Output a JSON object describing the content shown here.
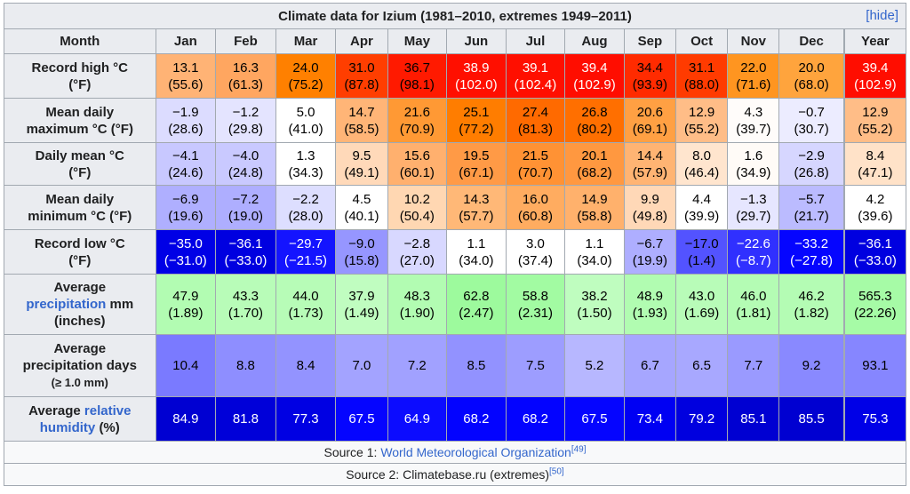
{
  "caption": {
    "title": "Climate data for Izium (1981–2010, extremes 1949–2011)",
    "hide": "[hide]"
  },
  "header": {
    "month": "Month",
    "months": [
      "Jan",
      "Feb",
      "Mar",
      "Apr",
      "May",
      "Jun",
      "Jul",
      "Aug",
      "Sep",
      "Oct",
      "Nov",
      "Dec"
    ],
    "year": "Year"
  },
  "rows": [
    {
      "label": [
        "Record high °C",
        "(°F)"
      ],
      "c": [
        "13.1",
        "16.3",
        "24.0",
        "31.0",
        "36.7",
        "38.9",
        "39.1",
        "39.4",
        "34.4",
        "31.1",
        "22.0",
        "20.0",
        "39.4"
      ],
      "f": [
        "(55.6)",
        "(61.3)",
        "(75.2)",
        "(87.8)",
        "(98.1)",
        "(102.0)",
        "(102.4)",
        "(102.9)",
        "(93.9)",
        "(88.0)",
        "(71.6)",
        "(68.0)",
        "(102.9)"
      ],
      "bg": [
        "#ffb375",
        "#ffa660",
        "#ff8000",
        "#ff3e00",
        "#ff1a00",
        "#ff0f00",
        "#ff0f00",
        "#ff0d00",
        "#ff2b00",
        "#ff3b00",
        "#ff9520",
        "#ffa43d",
        "#ff0d00"
      ],
      "fg": [
        "#000000",
        "#000000",
        "#000000",
        "#000000",
        "#000000",
        "#ffffff",
        "#ffffff",
        "#ffffff",
        "#000000",
        "#000000",
        "#000000",
        "#000000",
        "#ffffff"
      ]
    },
    {
      "label": [
        "Mean daily",
        "maximum °C (°F)"
      ],
      "c": [
        "−1.9",
        "−1.2",
        "5.0",
        "14.7",
        "21.6",
        "25.1",
        "27.4",
        "26.8",
        "20.6",
        "12.9",
        "4.3",
        "−0.7",
        "12.9"
      ],
      "f": [
        "(28.6)",
        "(29.8)",
        "(41.0)",
        "(58.5)",
        "(70.9)",
        "(77.2)",
        "(81.3)",
        "(80.2)",
        "(69.1)",
        "(55.2)",
        "(39.7)",
        "(30.7)",
        "(55.2)"
      ],
      "bg": [
        "#dcdcff",
        "#e4e4ff",
        "#ffffff",
        "#ffb577",
        "#ff9934",
        "#ff7d00",
        "#ff6a00",
        "#ff6f00",
        "#ffa043",
        "#ffbd87",
        "#fffcfa",
        "#ececff",
        "#ffbd87"
      ],
      "fg": [
        "#000000",
        "#000000",
        "#000000",
        "#000000",
        "#000000",
        "#000000",
        "#000000",
        "#000000",
        "#000000",
        "#000000",
        "#000000",
        "#000000",
        "#000000"
      ]
    },
    {
      "label": [
        "Daily mean °C",
        "(°F)"
      ],
      "c": [
        "−4.1",
        "−4.0",
        "1.3",
        "9.5",
        "15.6",
        "19.5",
        "21.5",
        "20.1",
        "14.4",
        "8.0",
        "1.6",
        "−2.9",
        "8.4"
      ],
      "f": [
        "(24.6)",
        "(24.8)",
        "(34.3)",
        "(49.1)",
        "(60.1)",
        "(67.1)",
        "(70.7)",
        "(68.2)",
        "(57.9)",
        "(46.4)",
        "(34.9)",
        "(26.8)",
        "(47.1)"
      ],
      "bg": [
        "#c8c8ff",
        "#c9c9ff",
        "#ffffff",
        "#ffd9b9",
        "#ffb06e",
        "#ff9a46",
        "#ff9234",
        "#ff9840",
        "#ffb473",
        "#ffe5ce",
        "#fffbf7",
        "#d6d6ff",
        "#ffe2c8"
      ],
      "fg": [
        "#000000",
        "#000000",
        "#000000",
        "#000000",
        "#000000",
        "#000000",
        "#000000",
        "#000000",
        "#000000",
        "#000000",
        "#000000",
        "#000000",
        "#000000"
      ]
    },
    {
      "label": [
        "Mean daily",
        "minimum °C (°F)"
      ],
      "c": [
        "−6.9",
        "−7.2",
        "−2.2",
        "4.5",
        "10.2",
        "14.3",
        "16.0",
        "14.9",
        "9.9",
        "4.4",
        "−1.3",
        "−5.7",
        "4.2"
      ],
      "f": [
        "(19.6)",
        "(19.0)",
        "(28.0)",
        "(40.1)",
        "(50.4)",
        "(57.7)",
        "(60.8)",
        "(58.8)",
        "(49.8)",
        "(39.9)",
        "(29.7)",
        "(21.7)",
        "(39.6)"
      ],
      "bg": [
        "#afafff",
        "#aeaeff",
        "#dddeff",
        "#ffffff",
        "#ffd7b2",
        "#ffb877",
        "#ffac60",
        "#ffb16c",
        "#ffd8b7",
        "#ffffff",
        "#e6e6ff",
        "#bbbbff",
        "#ffffff"
      ],
      "fg": [
        "#000000",
        "#000000",
        "#000000",
        "#000000",
        "#000000",
        "#000000",
        "#000000",
        "#000000",
        "#000000",
        "#000000",
        "#000000",
        "#000000",
        "#000000"
      ]
    },
    {
      "label": [
        "Record low °C",
        "(°F)"
      ],
      "c": [
        "−35.0",
        "−36.1",
        "−29.7",
        "−9.0",
        "−2.8",
        "1.1",
        "3.0",
        "1.1",
        "−6.7",
        "−17.0",
        "−22.6",
        "−33.2",
        "−36.1"
      ],
      "f": [
        "(−31.0)",
        "(−33.0)",
        "(−21.5)",
        "(15.8)",
        "(27.0)",
        "(34.0)",
        "(37.4)",
        "(34.0)",
        "(19.9)",
        "(1.4)",
        "(−8.7)",
        "(−27.8)",
        "(−33.0)"
      ],
      "bg": [
        "#0000e6",
        "#0000e0",
        "#1414ff",
        "#9696ff",
        "#d8d8ff",
        "#ffffff",
        "#ffffff",
        "#ffffff",
        "#aeaeff",
        "#5353ff",
        "#3030ff",
        "#0505ff",
        "#0000e0"
      ],
      "fg": [
        "#ffffff",
        "#ffffff",
        "#ffffff",
        "#000000",
        "#000000",
        "#000000",
        "#000000",
        "#000000",
        "#000000",
        "#000000",
        "#ffffff",
        "#ffffff",
        "#ffffff"
      ]
    },
    {
      "label": [
        "Average",
        "precipitation",
        "mm",
        "(inches)"
      ],
      "c": [
        "47.9",
        "43.3",
        "44.0",
        "37.9",
        "48.3",
        "62.8",
        "58.8",
        "38.2",
        "48.9",
        "43.0",
        "46.0",
        "46.2",
        "565.3"
      ],
      "f": [
        "(1.89)",
        "(1.70)",
        "(1.73)",
        "(1.49)",
        "(1.90)",
        "(2.47)",
        "(2.31)",
        "(1.50)",
        "(1.93)",
        "(1.69)",
        "(1.81)",
        "(1.82)",
        "(22.26)"
      ],
      "bg": [
        "#b2fcb2",
        "#b8fcb8",
        "#b7fcb7",
        "#c0fdc0",
        "#b2fcb2",
        "#9dfa9d",
        "#a2fba2",
        "#bffdbf",
        "#b1fcb1",
        "#b8fcb8",
        "#b4fcb4",
        "#b4fcb4",
        "#a6fba6"
      ],
      "fg": [
        "#000000",
        "#000000",
        "#000000",
        "#000000",
        "#000000",
        "#000000",
        "#000000",
        "#000000",
        "#000000",
        "#000000",
        "#000000",
        "#000000",
        "#000000"
      ]
    },
    {
      "label": [
        "Average",
        "precipitation days",
        "(≥ 1.0 mm)"
      ],
      "v": [
        "10.4",
        "8.8",
        "8.4",
        "7.0",
        "7.2",
        "8.5",
        "7.5",
        "5.2",
        "6.7",
        "6.5",
        "7.7",
        "9.2",
        "93.1"
      ],
      "bg": [
        "#7a7aff",
        "#8e8eff",
        "#9393ff",
        "#a3a3ff",
        "#a1a1ff",
        "#9292ff",
        "#9d9dff",
        "#b7b7ff",
        "#a6a6ff",
        "#a8a8ff",
        "#9a9aff",
        "#8989ff",
        "#8686ff"
      ],
      "fg": [
        "#000000",
        "#000000",
        "#000000",
        "#000000",
        "#000000",
        "#000000",
        "#000000",
        "#000000",
        "#000000",
        "#000000",
        "#000000",
        "#000000",
        "#000000"
      ]
    },
    {
      "label": [
        "Average",
        "relative",
        "humidity",
        "(%)"
      ],
      "v": [
        "84.9",
        "81.8",
        "77.3",
        "67.5",
        "64.9",
        "68.2",
        "68.2",
        "67.5",
        "73.4",
        "79.2",
        "85.1",
        "85.5",
        "75.3"
      ],
      "bg": [
        "#0000d2",
        "#0000d9",
        "#0000e3",
        "#0505ff",
        "#0c0cff",
        "#0303ff",
        "#0303ff",
        "#0505ff",
        "#0000f3",
        "#0000df",
        "#0000d2",
        "#0000d1",
        "#0000e7"
      ],
      "fg": [
        "#ffffff",
        "#ffffff",
        "#ffffff",
        "#ffffff",
        "#ffffff",
        "#ffffff",
        "#ffffff",
        "#ffffff",
        "#ffffff",
        "#ffffff",
        "#ffffff",
        "#ffffff",
        "#ffffff"
      ]
    }
  ],
  "sources": {
    "s1_prefix": "Source 1: ",
    "s1_link": "World Meteorological Organization",
    "s1_ref": "[49]",
    "s2_text": "Source 2: Climatebase.ru (extremes)",
    "s2_ref": "[50]"
  }
}
